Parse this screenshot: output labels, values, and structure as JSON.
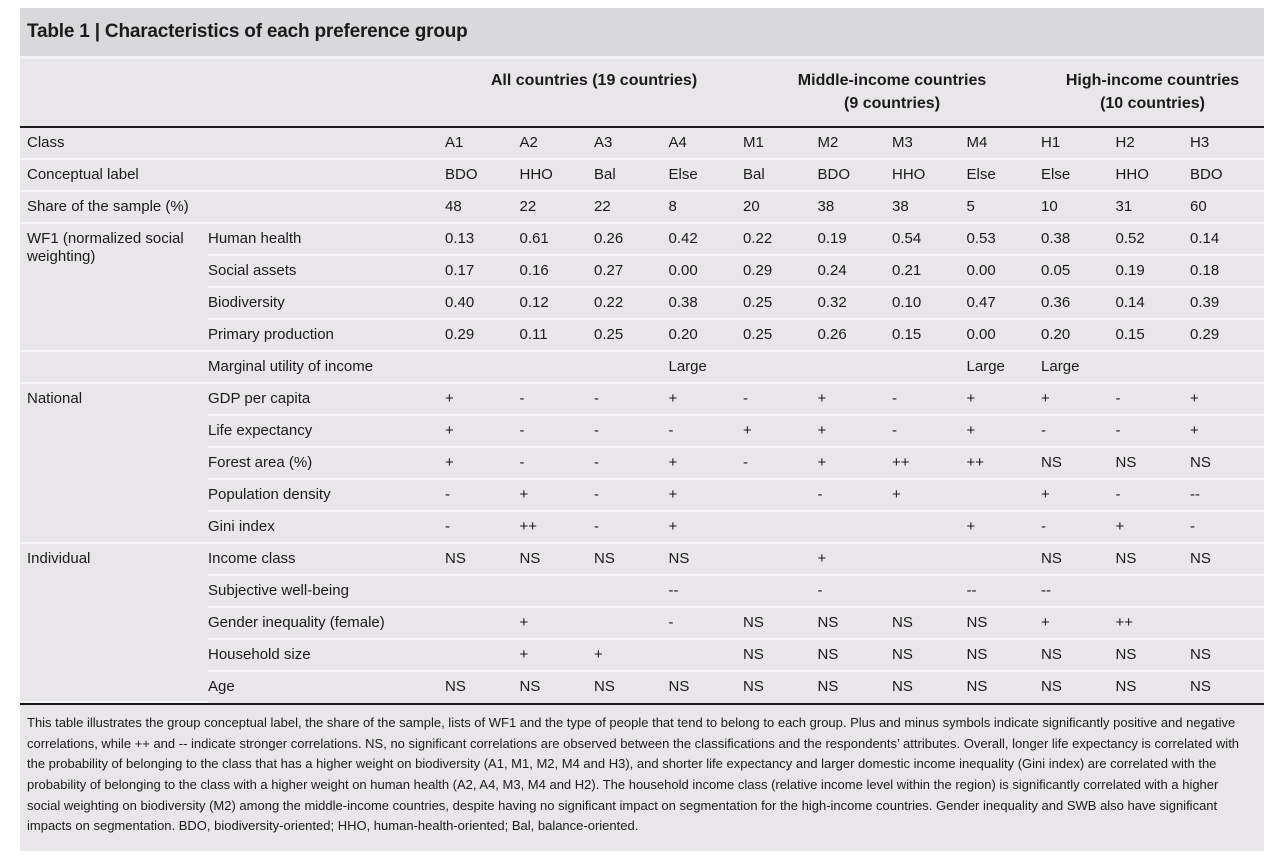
{
  "table": {
    "title": "Table 1 | Characteristics of each preference group",
    "groups": [
      {
        "label": "All countries (19 countries)",
        "span": 4
      },
      {
        "label": "Middle-income countries\n(9 countries)",
        "span": 4
      },
      {
        "label": "High-income countries\n(10 countries)",
        "span": 3
      }
    ],
    "class_columns": [
      "A1",
      "A2",
      "A3",
      "A4",
      "M1",
      "M2",
      "M3",
      "M4",
      "H1",
      "H2",
      "H3"
    ],
    "rows": [
      {
        "label": "Class",
        "label_span": 2,
        "cells": [
          "A1",
          "A2",
          "A3",
          "A4",
          "M1",
          "M2",
          "M3",
          "M4",
          "H1",
          "H2",
          "H3"
        ]
      },
      {
        "label": "Conceptual label",
        "label_span": 2,
        "cells": [
          "BDO",
          "HHO",
          "Bal",
          "Else",
          "Bal",
          "BDO",
          "HHO",
          "Else",
          "Else",
          "HHO",
          "BDO"
        ]
      },
      {
        "label": "Share of the sample (%)",
        "label_span": 2,
        "cells": [
          "48",
          "22",
          "22",
          "8",
          "20",
          "38",
          "38",
          "5",
          "10",
          "31",
          "60"
        ]
      },
      {
        "label": "WF1 (normalized social weighting)",
        "label_rowspan": 4,
        "sublabel": "Human health",
        "cells": [
          "0.13",
          "0.61",
          "0.26",
          "0.42",
          "0.22",
          "0.19",
          "0.54",
          "0.53",
          "0.38",
          "0.52",
          "0.14"
        ]
      },
      {
        "sublabel": "Social assets",
        "cells": [
          "0.17",
          "0.16",
          "0.27",
          "0.00",
          "0.29",
          "0.24",
          "0.21",
          "0.00",
          "0.05",
          "0.19",
          "0.18"
        ]
      },
      {
        "sublabel": "Biodiversity",
        "cells": [
          "0.40",
          "0.12",
          "0.22",
          "0.38",
          "0.25",
          "0.32",
          "0.10",
          "0.47",
          "0.36",
          "0.14",
          "0.39"
        ]
      },
      {
        "sublabel": "Primary production",
        "cells": [
          "0.29",
          "0.11",
          "0.25",
          "0.20",
          "0.25",
          "0.26",
          "0.15",
          "0.00",
          "0.20",
          "0.15",
          "0.29"
        ]
      },
      {
        "label": "",
        "sublabel": "Marginal utility of income",
        "cells": [
          "",
          "",
          "",
          "Large",
          "",
          "",
          "",
          "Large",
          "Large",
          "",
          ""
        ]
      },
      {
        "label": "National",
        "label_rowspan": 5,
        "sublabel": "GDP per capita",
        "cells": [
          "+",
          "-",
          "-",
          "+",
          "-",
          "+",
          "-",
          "+",
          "+",
          "-",
          "+"
        ]
      },
      {
        "sublabel": "Life expectancy",
        "cells": [
          "+",
          "-",
          "-",
          "-",
          "+",
          "+",
          "-",
          "+",
          "-",
          "-",
          "+"
        ]
      },
      {
        "sublabel": "Forest area (%)",
        "cells": [
          "+",
          "-",
          "-",
          "+",
          "-",
          "+",
          "++",
          "++",
          "NS",
          "NS",
          "NS"
        ]
      },
      {
        "sublabel": "Population density",
        "cells": [
          "-",
          "+",
          "-",
          "+",
          "",
          "-",
          "+",
          "",
          "+",
          "-",
          "--"
        ]
      },
      {
        "sublabel": "Gini index",
        "cells": [
          "-",
          "++",
          "-",
          "+",
          "",
          "",
          "",
          "+",
          "-",
          "+",
          "-"
        ]
      },
      {
        "label": "Individual",
        "label_rowspan": 5,
        "sublabel": "Income class",
        "cells": [
          "NS",
          "NS",
          "NS",
          "NS",
          "",
          "+",
          "",
          "",
          "NS",
          "NS",
          "NS"
        ]
      },
      {
        "sublabel": "Subjective well-being",
        "cells": [
          "",
          "",
          "",
          "--",
          "",
          "-",
          "",
          "--",
          "--",
          "",
          ""
        ]
      },
      {
        "sublabel": "Gender inequality (female)",
        "cells": [
          "",
          "+",
          "",
          "-",
          "NS",
          "NS",
          "NS",
          "NS",
          "+",
          "++",
          ""
        ]
      },
      {
        "sublabel": "Household size",
        "cells": [
          "",
          "+",
          "+",
          "",
          "NS",
          "NS",
          "NS",
          "NS",
          "NS",
          "NS",
          "NS"
        ]
      },
      {
        "sublabel": "Age",
        "cells": [
          "NS",
          "NS",
          "NS",
          "NS",
          "NS",
          "NS",
          "NS",
          "NS",
          "NS",
          "NS",
          "NS"
        ]
      }
    ],
    "footnote": "This table illustrates the group conceptual label, the share of the sample, lists of WF1 and the type of people that tend to belong to each group. Plus and minus symbols indicate significantly positive and negative correlations, while ++ and -- indicate stronger correlations. NS, no significant correlations are observed between the classifications and the respondents’ attributes. Overall, longer life expectancy is correlated with the probability of belonging to the class that has a higher weight on biodiversity (A1, M1, M2, M4 and H3), and shorter life expectancy and larger domestic income inequality (Gini index) are correlated with the probability of belonging to the class with a higher weight on human health (A2, A4, M3, M4 and H2). The household income class (relative income level within the region) is significantly correlated with a higher social weighting on biodiversity (M2) among the middle-income countries, despite having no significant impact on segmentation for the high-income countries. Gender inequality and SWB also have significant impacts on segmentation. BDO, biodiversity-oriented; HHO, human-health-oriented; Bal, balance-oriented."
  },
  "colors": {
    "table_background": "#e8e6e8",
    "title_band_background": "#d9d8db",
    "row_separator": "#f7f6f8",
    "header_rule": "#1a1a1a",
    "text": "#1b1b1b"
  }
}
